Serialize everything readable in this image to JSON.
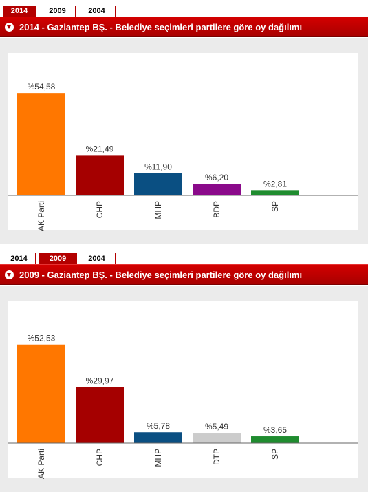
{
  "colors": {
    "accent": "#b30000",
    "ak_parti": "#ff7700",
    "chp": "#a50000",
    "mhp": "#0a4f82",
    "bdp": "#8a0a8a",
    "dtp": "#cccccc",
    "sp": "#1f8c2f"
  },
  "panels": [
    {
      "tabs": [
        {
          "label": "2014",
          "active": true
        },
        {
          "label": "2009",
          "active": false
        },
        {
          "label": "2004",
          "active": false
        }
      ],
      "title": "2014 - Gaziantep BŞ. - Belediye seçimleri partilere göre oy dağılımı"
    },
    {
      "tabs": [
        {
          "label": "2014",
          "active": false
        },
        {
          "label": "2009",
          "active": true
        },
        {
          "label": "2004",
          "active": false
        }
      ],
      "title": "2009 - Gaziantep BŞ. - Belediye seçimleri partilere göre oy dağılımı"
    }
  ],
  "chart_data": [
    {
      "type": "bar",
      "categories": [
        "AK Parti",
        "CHP",
        "MHP",
        "BDP",
        "SP"
      ],
      "values": [
        54.58,
        21.49,
        11.9,
        6.2,
        2.81
      ],
      "data_labels": [
        "%54,58",
        "%21,49",
        "%11,90",
        "%6,20",
        "%2,81"
      ],
      "colors": [
        "#ff7700",
        "#a50000",
        "#0a4f82",
        "#8a0a8a",
        "#1f8c2f"
      ],
      "ylim": [
        0,
        55
      ],
      "grid": false,
      "legend": "none"
    },
    {
      "type": "bar",
      "categories": [
        "AK Parti",
        "CHP",
        "MHP",
        "DTP",
        "SP"
      ],
      "values": [
        52.53,
        29.97,
        5.78,
        5.49,
        3.65
      ],
      "data_labels": [
        "%52,53",
        "%29,97",
        "%5,78",
        "%5,49",
        "%3,65"
      ],
      "colors": [
        "#ff7700",
        "#a50000",
        "#0a4f82",
        "#cccccc",
        "#1f8c2f"
      ],
      "ylim": [
        0,
        55
      ],
      "grid": false,
      "legend": "none"
    }
  ]
}
